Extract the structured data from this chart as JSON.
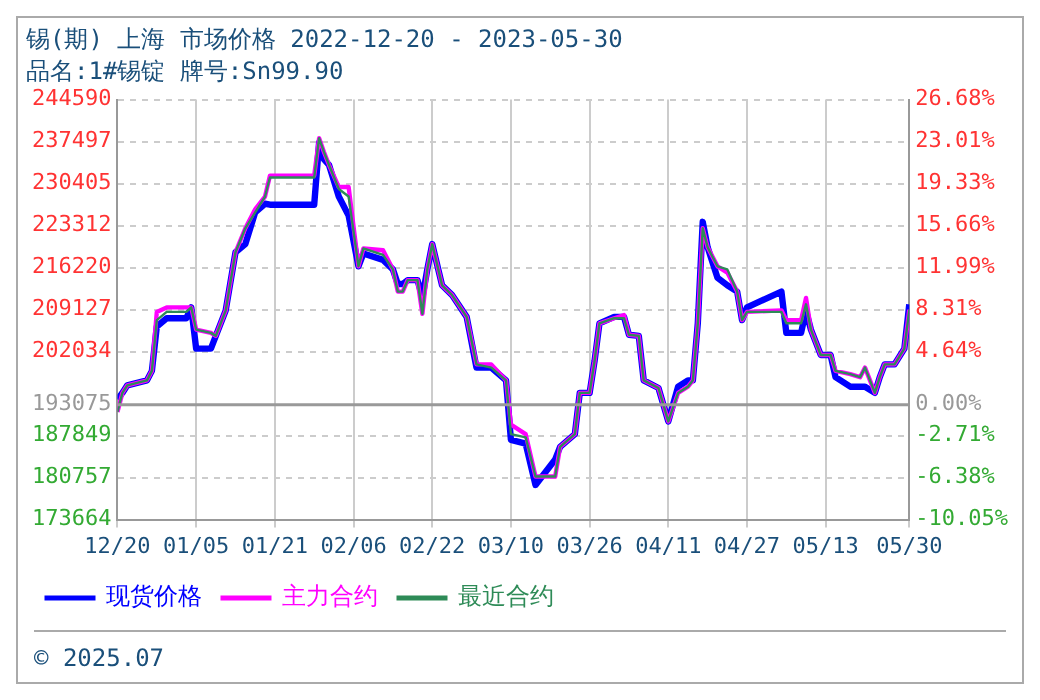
{
  "chart_data": {
    "type": "line",
    "title": "锡(期) 上海 市场价格 2022-12-20 - 2023-05-30",
    "subtitle": "品名:1#锡锭 牌号:Sn99.90",
    "x": [
      "2022-12-20",
      "2022-12-21",
      "2022-12-22",
      "2022-12-26",
      "2022-12-27",
      "2022-12-28",
      "2022-12-30",
      "2023-01-03",
      "2023-01-04",
      "2023-01-05",
      "2023-01-08",
      "2023-01-09",
      "2023-01-11",
      "2023-01-13",
      "2023-01-15",
      "2023-01-17",
      "2023-01-19",
      "2023-01-20",
      "2023-01-29",
      "2023-01-30",
      "2023-01-31",
      "2023-02-01",
      "2023-02-03",
      "2023-02-05",
      "2023-02-07",
      "2023-02-08",
      "2023-02-12",
      "2023-02-14",
      "2023-02-15",
      "2023-02-16",
      "2023-02-17",
      "2023-02-19",
      "2023-02-20",
      "2023-02-21",
      "2023-02-22",
      "2023-02-24",
      "2023-02-26",
      "2023-03-01",
      "2023-03-03",
      "2023-03-06",
      "2023-03-09",
      "2023-03-10",
      "2023-03-13",
      "2023-03-15",
      "2023-03-19",
      "2023-03-20",
      "2023-03-23",
      "2023-03-24",
      "2023-03-26",
      "2023-03-27",
      "2023-03-28",
      "2023-03-31",
      "2023-04-02",
      "2023-04-03",
      "2023-04-05",
      "2023-04-06",
      "2023-04-09",
      "2023-04-11",
      "2023-04-13",
      "2023-04-15",
      "2023-04-16",
      "2023-04-17",
      "2023-04-18",
      "2023-04-19",
      "2023-04-21",
      "2023-04-23",
      "2023-04-25",
      "2023-04-26",
      "2023-04-27",
      "2023-05-04",
      "2023-05-05",
      "2023-05-08",
      "2023-05-09",
      "2023-05-10",
      "2023-05-12",
      "2023-05-14",
      "2023-05-15",
      "2023-05-18",
      "2023-05-20",
      "2023-05-21",
      "2023-05-23",
      "2023-05-24",
      "2023-05-25",
      "2023-05-27",
      "2023-05-29",
      "2023-05-30"
    ],
    "series": [
      {
        "name": "现货价格",
        "color": "#0000ff",
        "values": [
          193970,
          195060,
          196340,
          197180,
          198780,
          206270,
          207670,
          207670,
          209500,
          202540,
          202540,
          204690,
          208960,
          218810,
          220190,
          225550,
          227000,
          226840,
          226840,
          237300,
          234500,
          233580,
          228220,
          225000,
          216440,
          218590,
          217530,
          215920,
          213450,
          213450,
          214100,
          214100,
          211200,
          215920,
          220190,
          213230,
          211620,
          207900,
          199330,
          199330,
          197180,
          187130,
          186490,
          179520,
          183820,
          185950,
          188090,
          195060,
          195060,
          200390,
          206810,
          207900,
          207900,
          204880,
          204690,
          197180,
          195890,
          190240,
          196110,
          197180,
          197180,
          206810,
          223950,
          219650,
          214510,
          213230,
          212170,
          207350,
          209500,
          212170,
          205200,
          205200,
          208960,
          205750,
          201470,
          201470,
          197720,
          196110,
          196110,
          196110,
          195060,
          197720,
          199870,
          199870,
          202540,
          210020
        ]
      },
      {
        "name": "主力合约",
        "color": "#ff00ff",
        "values": [
          191850,
          195060,
          196340,
          197180,
          198780,
          208740,
          209500,
          209500,
          209500,
          205750,
          205200,
          204690,
          208960,
          218810,
          222860,
          226070,
          228220,
          231750,
          231750,
          238070,
          235700,
          233580,
          229820,
          229820,
          216440,
          219450,
          219140,
          215920,
          212170,
          212170,
          214100,
          214100,
          208410,
          215920,
          220190,
          213230,
          211620,
          207900,
          199870,
          199870,
          197180,
          189700,
          188090,
          180930,
          180930,
          185950,
          188090,
          195060,
          195060,
          200390,
          206810,
          207670,
          208200,
          204880,
          204690,
          197180,
          195890,
          190240,
          195060,
          196110,
          197180,
          206810,
          222860,
          219650,
          216440,
          215380,
          212170,
          207350,
          208740,
          209000,
          207350,
          207350,
          211100,
          205750,
          201470,
          201470,
          198780,
          198240,
          197720,
          199330,
          195060,
          197720,
          199870,
          199870,
          202540,
          209100
        ]
      },
      {
        "name": "最近合约",
        "color": "#2e8b57",
        "values": [
          191850,
          195060,
          196340,
          197180,
          198780,
          207350,
          208740,
          208740,
          209500,
          205750,
          205200,
          204690,
          208960,
          218810,
          222860,
          225550,
          228220,
          231430,
          231430,
          238070,
          235700,
          233580,
          229500,
          228220,
          216440,
          219450,
          218360,
          215920,
          212170,
          212170,
          214100,
          214100,
          208410,
          215920,
          220190,
          213230,
          211620,
          207900,
          199870,
          199330,
          197180,
          188090,
          187550,
          180930,
          180930,
          185950,
          188090,
          195060,
          195060,
          200390,
          206810,
          207670,
          207670,
          204880,
          204690,
          197180,
          195890,
          190240,
          195060,
          196110,
          197180,
          206810,
          222860,
          219650,
          216440,
          215920,
          212170,
          207350,
          208740,
          208740,
          206810,
          206810,
          210020,
          205750,
          201470,
          201470,
          198780,
          198240,
          197720,
          199330,
          195060,
          197720,
          199870,
          199870,
          202540,
          209100
        ]
      }
    ],
    "xlim": [
      "2022-12-20",
      "2023-05-30"
    ],
    "xticks": [
      {
        "value": "2022-12-20",
        "label": "12/20"
      },
      {
        "value": "2023-01-05",
        "label": "01/05"
      },
      {
        "value": "2023-01-21",
        "label": "01/21"
      },
      {
        "value": "2023-02-06",
        "label": "02/06"
      },
      {
        "value": "2023-02-22",
        "label": "02/22"
      },
      {
        "value": "2023-03-10",
        "label": "03/10"
      },
      {
        "value": "2023-03-26",
        "label": "03/26"
      },
      {
        "value": "2023-04-11",
        "label": "04/11"
      },
      {
        "value": "2023-04-27",
        "label": "04/27"
      },
      {
        "value": "2023-05-13",
        "label": "05/13"
      },
      {
        "value": "2023-05-30",
        "label": "05/30"
      }
    ],
    "ylim": [
      173664,
      244590
    ],
    "yticks": [
      173664,
      180757,
      187849,
      193075,
      202034,
      209127,
      216220,
      223312,
      230405,
      237497,
      244590
    ],
    "y2lim": [
      -10.05,
      26.68
    ],
    "y2ticks": [
      {
        "value": -10.05,
        "label": "-10.05%"
      },
      {
        "value": -6.38,
        "label": "-6.38%"
      },
      {
        "value": -2.71,
        "label": "-2.71%"
      },
      {
        "value": 0,
        "label": "0.00%"
      },
      {
        "value": 4.64,
        "label": "4.64%"
      },
      {
        "value": 8.31,
        "label": "8.31%"
      },
      {
        "value": 11.99,
        "label": "11.99%"
      },
      {
        "value": 15.66,
        "label": "15.66%"
      },
      {
        "value": 19.33,
        "label": "19.33%"
      },
      {
        "value": 23.01,
        "label": "23.01%"
      },
      {
        "value": 26.68,
        "label": "26.68%"
      }
    ],
    "grid": true,
    "legend": "bottom",
    "marker": "none",
    "line_style": "solid",
    "ref_lines": [
      {
        "axis": "y2",
        "value": 0,
        "color": "#999999"
      }
    ],
    "annotations": [
      "© 2025.07"
    ]
  }
}
